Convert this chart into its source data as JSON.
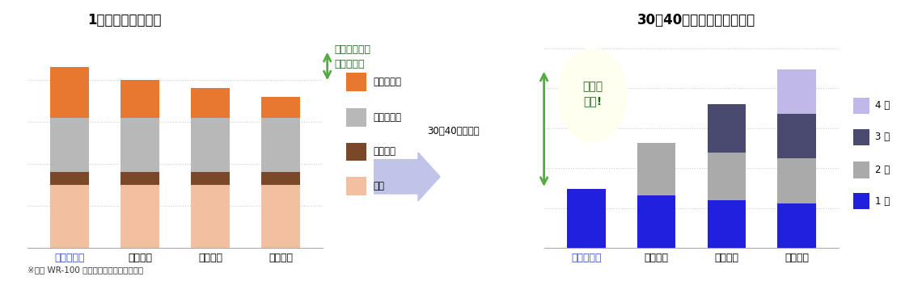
{
  "left_title": "1回の塗り替え費用",
  "right_title": "30〜40年間の塗り替え費用",
  "categories": [
    "ボンフロン",
    "シリコン",
    "ウレタン",
    "アクリル"
  ],
  "left_segments_order": [
    "足場",
    "下地処理",
    "塗装工事費",
    "塗装材料費"
  ],
  "left_segments": {
    "足場": [
      30,
      30,
      30,
      30
    ],
    "下地処理": [
      6,
      6,
      6,
      6
    ],
    "塗装工事費": [
      26,
      26,
      26,
      26
    ],
    "塗装材料費": [
      24,
      18,
      14,
      10
    ]
  },
  "left_colors": {
    "足場": "#f2c0a0",
    "下地処理": "#7a4828",
    "塗装工事費": "#b8b8b8",
    "塗装材料費": "#e87830"
  },
  "right_data": {
    "1回": [
      37,
      33,
      30,
      28
    ],
    "2回": [
      0,
      33,
      30,
      28
    ],
    "3回": [
      0,
      0,
      30,
      28
    ],
    "4回": [
      0,
      0,
      0,
      28
    ]
  },
  "right_order": [
    "1回",
    "2回",
    "3回",
    "4回"
  ],
  "right_colors": {
    "1回": "#2020dd",
    "2回": "#aaaaaa",
    "3回": "#4a4a70",
    "4回": "#c0b8e8"
  },
  "arrow_color": "#55aa44",
  "annotation_text": "この分\nお得!",
  "annotation_bg": "#fffff0",
  "left_annotation": "工事費全体の\n差はわずか",
  "middle_text": "30〜40年間では",
  "right_arrow_color": "#c0c4e8",
  "footnote": "※当社 WR-100 工法（水性フッ素）で比較",
  "bonfront_color": "#3355bb",
  "title_line_color": "#aaaaaa",
  "left_legend_order": [
    "塗装材料費",
    "塗装工事費",
    "下地処理",
    "足場"
  ],
  "right_legend_order": [
    "4回",
    "3回",
    "2回",
    "1回"
  ],
  "right_legend_labels": [
    "4 回",
    "3 回",
    "2 回",
    "1 回"
  ]
}
